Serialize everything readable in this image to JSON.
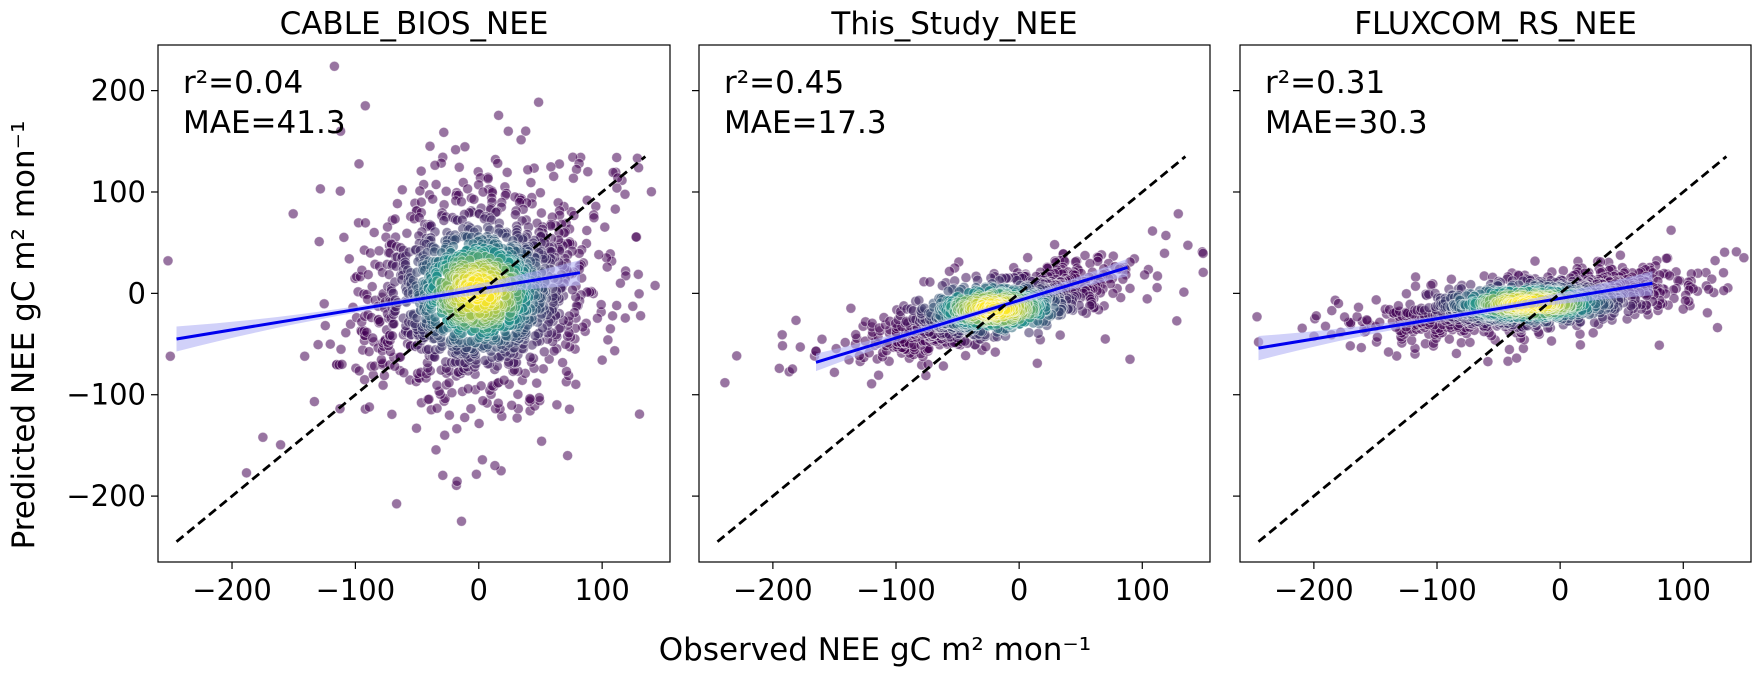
{
  "figure": {
    "xlabel": "Observed NEE gC m² mon⁻¹",
    "ylabel": "Predicted NEE gC m² mon⁻¹"
  },
  "colors": {
    "points_low": "#440154",
    "points_mid": "#21918c",
    "points_high": "#fde725",
    "fit_line": "#0000ee",
    "fit_band": "#b3b3f5",
    "one_to_one": "#000000"
  },
  "chart_data": [
    {
      "type": "scatter",
      "title": "CABLE_BIOS_NEE",
      "r2_label": "r²=0.04",
      "mae_label": "MAE=41.3",
      "xlim": [
        -260,
        155
      ],
      "ylim": [
        -265,
        245
      ],
      "xticks": [
        -200,
        -100,
        0,
        100
      ],
      "yticks": [
        -200,
        -100,
        0,
        100,
        200
      ],
      "xtick_labels": [
        "−200",
        "−100",
        "0",
        "100"
      ],
      "ytick_labels": [
        "−200",
        "−100",
        "0",
        "100",
        "200"
      ],
      "regression": {
        "slope": 0.2,
        "intercept": 4,
        "x_range": [
          -245,
          82
        ]
      },
      "one_to_one": [
        -245,
        135
      ],
      "scatter_cloud": {
        "n": 1500,
        "x_center": 0,
        "x_spread": 45,
        "y_center": 2,
        "y_spread": 48,
        "corr": 0.15
      },
      "notable_points": [
        [
          -117,
          224
        ],
        [
          -92,
          185
        ],
        [
          -250,
          -62
        ],
        [
          -175,
          -142
        ],
        [
          72,
          -160
        ],
        [
          -112,
          160
        ]
      ]
    },
    {
      "type": "scatter",
      "title": "This_Study_NEE",
      "r2_label": "r²=0.45",
      "mae_label": "MAE=17.3",
      "xlim": [
        -260,
        155
      ],
      "ylim": [
        -265,
        245
      ],
      "xticks": [
        -200,
        -100,
        0,
        100
      ],
      "yticks": [
        -200,
        -100,
        0,
        100,
        200
      ],
      "xtick_labels": [
        "−200",
        "−100",
        "0",
        "100"
      ],
      "ytick_labels": [
        "−200",
        "−100",
        "0",
        "100",
        "200"
      ],
      "regression": {
        "slope": 0.37,
        "intercept": -7,
        "x_range": [
          -165,
          88
        ]
      },
      "one_to_one": [
        -245,
        135
      ],
      "scatter_cloud": {
        "n": 1100,
        "x_center": -20,
        "x_spread": 45,
        "y_center": -15,
        "y_spread": 20,
        "corr": 0.75
      },
      "notable_points": [
        [
          -165,
          -57
        ],
        [
          -150,
          -78
        ],
        [
          90,
          -65
        ],
        [
          70,
          -45
        ]
      ]
    },
    {
      "type": "scatter",
      "title": "FLUXCOM_RS_NEE",
      "r2_label": "r²=0.31",
      "mae_label": "MAE=30.3",
      "xlim": [
        -260,
        155
      ],
      "ylim": [
        -265,
        245
      ],
      "xticks": [
        -200,
        -100,
        0,
        100
      ],
      "yticks": [
        -200,
        -100,
        0,
        100,
        200
      ],
      "xtick_labels": [
        "−200",
        "−100",
        "0",
        "100"
      ],
      "ytick_labels": [
        "−200",
        "−100",
        "0",
        "100",
        "200"
      ],
      "regression": {
        "slope": 0.2,
        "intercept": -5,
        "x_range": [
          -245,
          75
        ]
      },
      "one_to_one": [
        -245,
        135
      ],
      "scatter_cloud": {
        "n": 1300,
        "x_center": -25,
        "x_spread": 55,
        "y_center": -10,
        "y_spread": 15,
        "corr": 0.6
      },
      "notable_points": [
        [
          -245,
          -48
        ],
        [
          -180,
          -10
        ],
        [
          75,
          -8
        ],
        [
          20,
          20
        ]
      ]
    }
  ]
}
